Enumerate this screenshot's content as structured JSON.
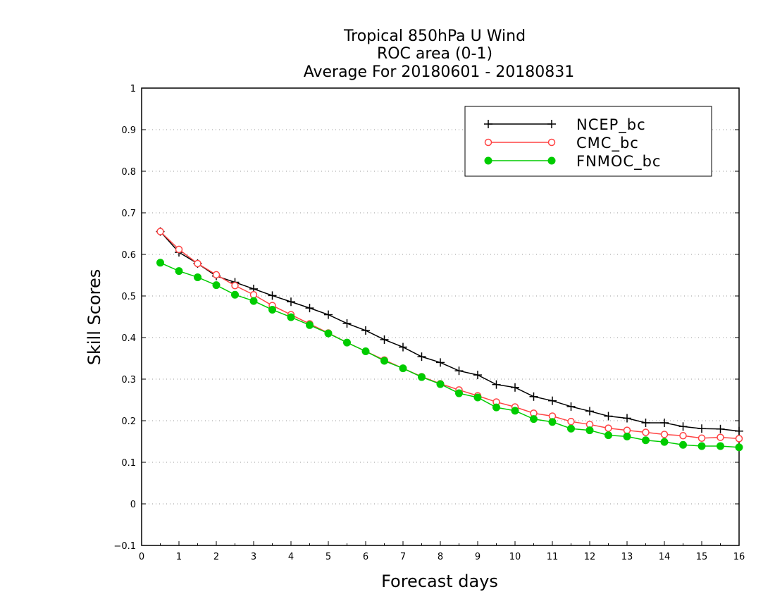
{
  "chart_data": {
    "type": "line",
    "title_lines": [
      "Tropical 850hPa U Wind",
      "ROC area (0-1)",
      "Average For 20180601 - 20180831"
    ],
    "xlabel": "Forecast days",
    "ylabel": "Skill Scores",
    "xlim": [
      0,
      16
    ],
    "ylim": [
      -0.1,
      1
    ],
    "xticks": [
      0,
      1,
      2,
      3,
      4,
      5,
      6,
      7,
      8,
      9,
      10,
      11,
      12,
      13,
      14,
      15,
      16
    ],
    "xtick_labels": [
      "0",
      "1",
      "2",
      "3",
      "4",
      "5",
      "6",
      "7",
      "8",
      "9",
      "10",
      "11",
      "12",
      "13",
      "14",
      "15",
      "16"
    ],
    "yticks": [
      -0.1,
      0,
      0.1,
      0.2,
      0.3,
      0.4,
      0.5,
      0.6,
      0.7,
      0.8,
      0.9,
      1
    ],
    "ytick_labels": [
      "−0.1",
      "0",
      "0.1",
      "0.2",
      "0.3",
      "0.4",
      "0.5",
      "0.6",
      "0.7",
      "0.8",
      "0.9",
      "1"
    ],
    "grid": "horizontal-dotted",
    "legend_position": "top-right",
    "x": [
      0.5,
      1,
      1.5,
      2,
      2.5,
      3,
      3.5,
      4,
      4.5,
      5,
      5.5,
      6,
      6.5,
      7,
      7.5,
      8,
      8.5,
      9,
      9.5,
      10,
      10.5,
      11,
      11.5,
      12,
      12.5,
      13,
      13.5,
      14,
      14.5,
      15,
      15.5,
      16
    ],
    "series": [
      {
        "name": "NCEP_bc",
        "color": "#000000",
        "marker": "plus",
        "values": [
          0.655,
          0.605,
          0.578,
          0.548,
          0.533,
          0.517,
          0.501,
          0.486,
          0.471,
          0.455,
          0.434,
          0.417,
          0.395,
          0.377,
          0.354,
          0.34,
          0.32,
          0.31,
          0.287,
          0.28,
          0.258,
          0.248,
          0.234,
          0.223,
          0.211,
          0.206,
          0.195,
          0.195,
          0.186,
          0.181,
          0.18,
          0.175
        ]
      },
      {
        "name": "CMC_bc",
        "color": "#ff4444",
        "marker": "open-circle",
        "values": [
          0.655,
          0.612,
          0.578,
          0.551,
          0.525,
          0.503,
          0.477,
          0.455,
          0.433,
          0.411,
          0.388,
          0.367,
          0.346,
          0.326,
          0.306,
          0.289,
          0.274,
          0.26,
          0.245,
          0.233,
          0.218,
          0.211,
          0.198,
          0.191,
          0.182,
          0.177,
          0.172,
          0.167,
          0.164,
          0.158,
          0.16,
          0.157
        ]
      },
      {
        "name": "FNMOC_bc",
        "color": "#00cc00",
        "marker": "filled-circle",
        "values": [
          0.58,
          0.56,
          0.545,
          0.526,
          0.503,
          0.488,
          0.467,
          0.449,
          0.43,
          0.41,
          0.388,
          0.367,
          0.344,
          0.326,
          0.305,
          0.288,
          0.266,
          0.256,
          0.232,
          0.224,
          0.204,
          0.197,
          0.181,
          0.177,
          0.165,
          0.162,
          0.153,
          0.149,
          0.142,
          0.139,
          0.139,
          0.136
        ]
      }
    ]
  }
}
